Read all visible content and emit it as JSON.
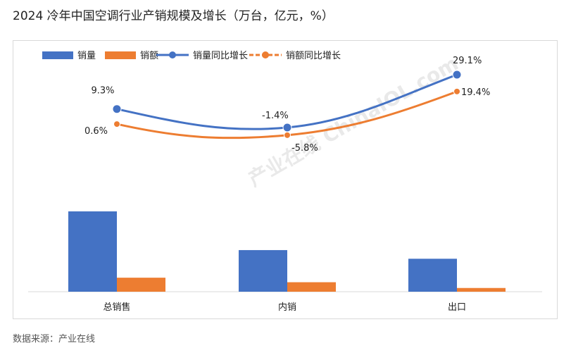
{
  "title": "2024 冷年中国空调行业产销规模及增长（万台，亿元，%）",
  "source": "数据来源：产业在线",
  "watermark": "产业在线 ChinaIOL.com",
  "colors": {
    "blue": "#4472c4",
    "orange": "#ed7d31",
    "grid": "#d9d9d9"
  },
  "chart_data": {
    "type": "bar",
    "categories": [
      "总销售",
      "内销",
      "出口"
    ],
    "series": [
      {
        "name": "销量",
        "kind": "bar",
        "axis": "left",
        "color": "#4472c4",
        "values": [
          19500,
          10100,
          8000
        ]
      },
      {
        "name": "销额",
        "kind": "bar",
        "axis": "left",
        "color": "#ed7d31",
        "values": [
          3400,
          2300,
          900
        ]
      },
      {
        "name": "销量同比增长",
        "kind": "line",
        "axis": "right",
        "color": "#4472c4",
        "values": [
          9.3,
          -1.4,
          29.1
        ],
        "labels": [
          "9.3%",
          "-1.4%",
          "29.1%"
        ]
      },
      {
        "name": "销额同比增长",
        "kind": "line",
        "axis": "right",
        "color": "#ed7d31",
        "values": [
          0.6,
          -5.8,
          19.4
        ],
        "labels": [
          "0.6%",
          "-5.8%",
          "19.4%"
        ]
      }
    ],
    "legend_position": "top-left",
    "grid": false
  }
}
